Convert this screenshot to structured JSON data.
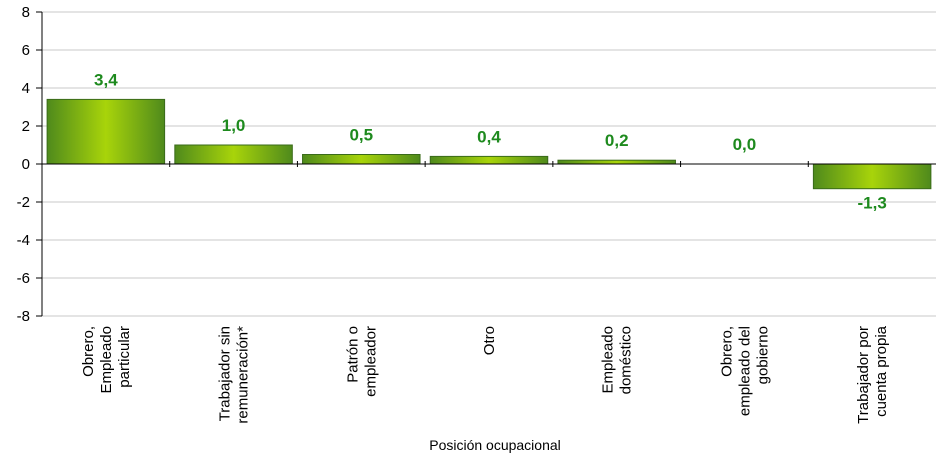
{
  "chart_data": {
    "type": "bar",
    "categories": [
      "Obrero, Empleado particular",
      "Trabajador sin remuneración*",
      "Patrón o empleador",
      "Otro",
      "Empleado doméstico",
      "Obrero, empleado del gobierno",
      "Trabajador por cuenta propia"
    ],
    "category_lines": [
      [
        "Obrero,",
        "Empleado",
        "particular"
      ],
      [
        "Trabajador sin",
        "remuneración*"
      ],
      [
        "Patrón o",
        "empleador"
      ],
      [
        "Otro"
      ],
      [
        "Empleado",
        "doméstico"
      ],
      [
        "Obrero,",
        "empleado del",
        "gobierno"
      ],
      [
        "Trabajador por",
        "cuenta propia"
      ]
    ],
    "values": [
      3.4,
      1.0,
      0.5,
      0.4,
      0.2,
      0.0,
      -1.3
    ],
    "data_labels": [
      "3,4",
      "1,0",
      "0,5",
      "0,4",
      "0,2",
      "0,0",
      "-1,3"
    ],
    "xlabel": "Posición ocupacional",
    "ylabel": "",
    "ylim": [
      -8,
      8
    ],
    "yticks": [
      -8,
      -6,
      -4,
      -2,
      0,
      2,
      4,
      6,
      8
    ],
    "ytick_labels": [
      "-8",
      "-6",
      "-4",
      "-2",
      "0",
      "2",
      "4",
      "6",
      "8"
    ],
    "grid": true,
    "colors": {
      "bar_edge": "#3a6b1a",
      "bar_dark": "#4f8a1c",
      "bar_light": "#a8d40a",
      "label": "#1e8a1e",
      "grid": "#c8c8c8",
      "axis": "#000000"
    }
  }
}
